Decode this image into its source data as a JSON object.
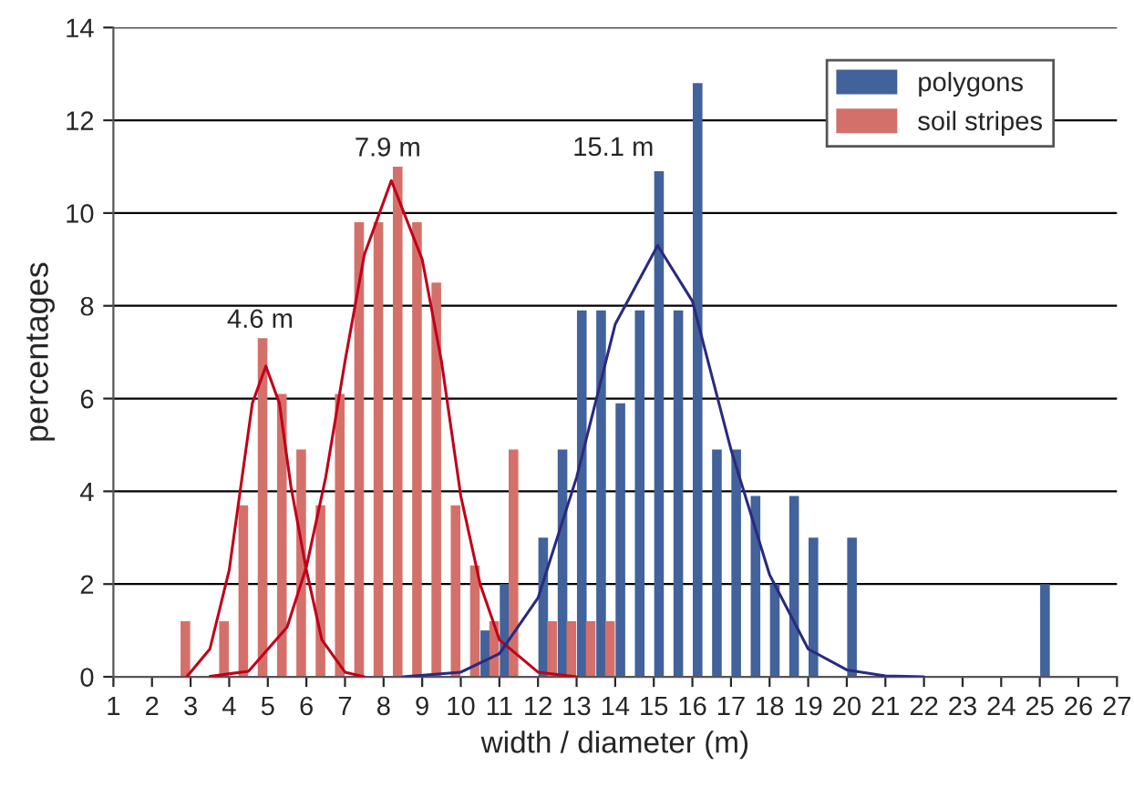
{
  "chart_data": {
    "type": "bar",
    "xlabel": "width / diameter (m)",
    "ylabel": "percentages",
    "xlim": [
      1,
      27
    ],
    "xticks": [
      1,
      2,
      3,
      4,
      5,
      6,
      7,
      8,
      9,
      10,
      11,
      12,
      13,
      14,
      15,
      16,
      17,
      18,
      19,
      20,
      21,
      22,
      23,
      24,
      25,
      26,
      27
    ],
    "ylim": [
      0,
      14
    ],
    "yticks": [
      0,
      2,
      4,
      6,
      8,
      10,
      12,
      14
    ],
    "grid": "y",
    "legend": "top right",
    "series": [
      {
        "name": "polygons",
        "color": "#41629a",
        "x": [
          10.5,
          11,
          12,
          12.5,
          13,
          13.5,
          14,
          14.5,
          15,
          15.5,
          16,
          16.5,
          17,
          17.5,
          18,
          18.5,
          19,
          20,
          25
        ],
        "values": [
          1.0,
          2.0,
          3.0,
          4.9,
          7.9,
          7.9,
          5.9,
          7.9,
          10.9,
          7.9,
          12.8,
          4.9,
          4.9,
          3.9,
          2.0,
          3.9,
          3.0,
          3.0,
          2.0
        ]
      },
      {
        "name": "soil stripes",
        "color": "#d4706a",
        "x": [
          3,
          4,
          4.5,
          5,
          5.5,
          6,
          6.5,
          7,
          7.5,
          8,
          8.5,
          9,
          9.5,
          10,
          10.5,
          11,
          11.5,
          12.5,
          13,
          13.5,
          14
        ],
        "values": [
          1.2,
          1.2,
          3.7,
          7.3,
          6.1,
          4.9,
          3.7,
          6.1,
          9.8,
          9.8,
          11.0,
          9.8,
          8.5,
          3.7,
          2.4,
          1.2,
          4.9,
          1.2,
          1.2,
          1.2,
          1.2
        ]
      },
      {
        "type": "line",
        "color": "#c0001a",
        "x": [
          2.9,
          3.5,
          4,
          4.3,
          4.6,
          4.95,
          5.3,
          5.6,
          6,
          6.4,
          7,
          7.5
        ],
        "values": [
          0,
          0.6,
          2.3,
          4.1,
          5.9,
          6.7,
          5.9,
          4.1,
          2.3,
          0.8,
          0.1,
          0
        ]
      },
      {
        "type": "line",
        "color": "#c0001a",
        "x": [
          3.5,
          4.5,
          5.5,
          6,
          6.5,
          7,
          7.5,
          8.2,
          9,
          9.5,
          10,
          10.5,
          11,
          12,
          13
        ],
        "values": [
          0.01,
          0.12,
          1.07,
          2.37,
          4.3,
          6.8,
          9.1,
          10.7,
          9.0,
          6.8,
          3.9,
          2.0,
          0.8,
          0.1,
          0
        ]
      },
      {
        "type": "line",
        "color": "#2a2a80",
        "x": [
          8.5,
          10,
          11,
          12,
          13,
          14,
          15.1,
          16,
          17,
          18,
          19,
          20,
          21,
          22
        ],
        "values": [
          0,
          0.1,
          0.5,
          1.7,
          4.3,
          7.6,
          9.3,
          8.1,
          4.9,
          2.2,
          0.6,
          0.15,
          0.02,
          0
        ]
      }
    ],
    "annotations": [
      {
        "text": "4.6 m",
        "x": 5,
        "y": 7.3
      },
      {
        "text": "7.9 m",
        "x": 8.5,
        "y": 11.0
      },
      {
        "text": "15.1 m",
        "x": 15,
        "y": 10.9
      }
    ]
  }
}
